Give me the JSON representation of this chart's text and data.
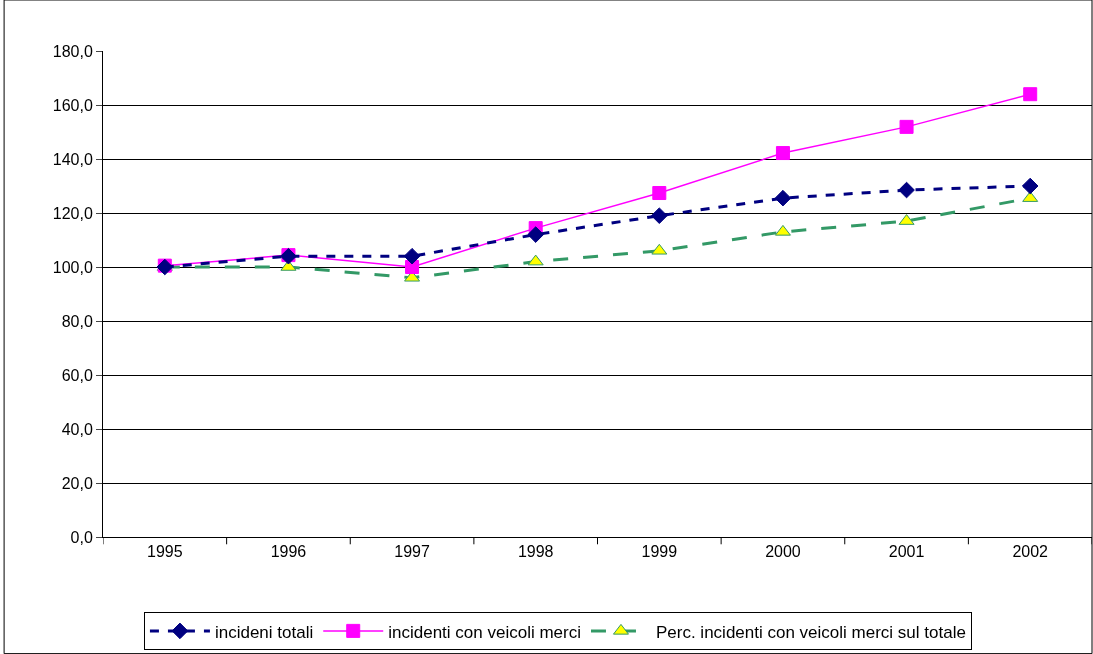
{
  "chart_data": {
    "type": "line",
    "categories": [
      "1995",
      "1996",
      "1997",
      "1998",
      "1999",
      "2000",
      "2001",
      "2002"
    ],
    "series": [
      {
        "name": "incideni totali",
        "color": "#000080",
        "marker": "diamond",
        "line_style": "dashed",
        "values": [
          100,
          104,
          104,
          112,
          119,
          125.5,
          128.5,
          130
        ]
      },
      {
        "name": "incidenti con veicoli merci",
        "color": "#ff00ff",
        "marker": "square",
        "line_style": "solid",
        "values": [
          100.5,
          104.4,
          100,
          114.4,
          127.4,
          142.2,
          151.9,
          164
        ]
      },
      {
        "name": "Perc. incidenti con veicoli merci sul totale",
        "color": "#339966",
        "colors": [
          "#ffff00",
          "#ffff00",
          "#ffff00",
          "#ffff00",
          "#ffff00",
          "#ffff00",
          "#ffff00",
          "#ffff00"
        ],
        "marker": "triangle",
        "line_style": "dashed",
        "values": [
          100,
          100,
          96,
          102,
          106,
          113,
          117,
          125.5
        ]
      }
    ],
    "ylim": [
      0,
      180
    ],
    "yticks": [
      {
        "value": 0,
        "label": "0,0"
      },
      {
        "value": 20,
        "label": "20,0"
      },
      {
        "value": 40,
        "label": "40,0"
      },
      {
        "value": 60,
        "label": "60,0"
      },
      {
        "value": 80,
        "label": "80,0"
      },
      {
        "value": 100,
        "label": "100,0"
      },
      {
        "value": 120,
        "label": "120,0"
      },
      {
        "value": 140,
        "label": "140,0"
      },
      {
        "value": 160,
        "label": "160,0"
      },
      {
        "value": 180,
        "label": "180,0"
      }
    ],
    "grid": "y",
    "legend": "bottom"
  }
}
